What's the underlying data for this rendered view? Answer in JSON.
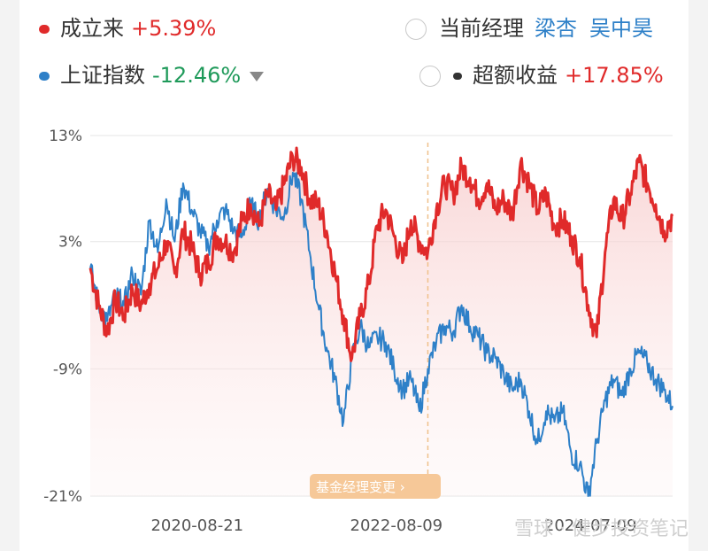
{
  "legend": {
    "fund": {
      "label": "成立来",
      "value": "+5.39%",
      "color": "#e02a2a"
    },
    "index": {
      "label": "上证指数",
      "value": "-12.46%",
      "color": "#2e80c8",
      "value_color": "#1f9a5a"
    },
    "manager": {
      "label": "当前经理",
      "names": [
        "梁杏",
        "吴中昊"
      ]
    },
    "excess": {
      "label": "超额收益",
      "value": "+17.85%"
    }
  },
  "event_badge": "基金经理变更 ›",
  "watermark": "雪球 · 健步投资笔记",
  "chart_data": {
    "type": "line",
    "x_ticks": [
      "2020-08-21",
      "2022-08-09",
      "2024-07-09"
    ],
    "y_ticks": [
      "13%",
      "3%",
      "-9%",
      "-21%"
    ],
    "ylim": [
      -21,
      13
    ],
    "manager_change_date": "2022-12",
    "series": [
      {
        "name": "成立来",
        "color": "#e02a2a",
        "points": [
          [
            "2019-08",
            0.5
          ],
          [
            "2019-09",
            -3
          ],
          [
            "2019-10",
            -5.5
          ],
          [
            "2019-11",
            -2.5
          ],
          [
            "2019-12",
            -4
          ],
          [
            "2020-01",
            -1.5
          ],
          [
            "2020-02",
            -3
          ],
          [
            "2020-03",
            -1
          ],
          [
            "2020-04",
            0.5
          ],
          [
            "2020-05",
            3
          ],
          [
            "2020-06",
            0
          ],
          [
            "2020-07",
            4
          ],
          [
            "2020-08",
            2.5
          ],
          [
            "2020-09",
            0
          ],
          [
            "2020-10",
            1
          ],
          [
            "2020-11",
            3.5
          ],
          [
            "2020-12",
            3
          ],
          [
            "2021-01",
            2
          ],
          [
            "2021-02",
            5
          ],
          [
            "2021-03",
            6.5
          ],
          [
            "2021-04",
            4.5
          ],
          [
            "2021-05",
            7.5
          ],
          [
            "2021-06",
            6
          ],
          [
            "2021-07",
            8.5
          ],
          [
            "2021-08",
            11
          ],
          [
            "2021-09",
            10
          ],
          [
            "2021-10",
            7
          ],
          [
            "2021-11",
            6.5
          ],
          [
            "2021-12",
            4
          ],
          [
            "2022-01",
            0
          ],
          [
            "2022-02",
            -4
          ],
          [
            "2022-03",
            -8
          ],
          [
            "2022-04",
            -4
          ],
          [
            "2022-05",
            -1
          ],
          [
            "2022-06",
            4.5
          ],
          [
            "2022-07",
            6
          ],
          [
            "2022-08",
            3.5
          ],
          [
            "2022-09",
            1
          ],
          [
            "2022-10",
            5
          ],
          [
            "2022-11",
            3
          ],
          [
            "2022-12",
            2
          ],
          [
            "2023-01",
            6
          ],
          [
            "2023-02",
            8.5
          ],
          [
            "2023-03",
            7.5
          ],
          [
            "2023-04",
            10
          ],
          [
            "2023-05",
            9
          ],
          [
            "2023-06",
            7
          ],
          [
            "2023-07",
            8.5
          ],
          [
            "2023-08",
            6
          ],
          [
            "2023-09",
            7
          ],
          [
            "2023-10",
            5.5
          ],
          [
            "2023-11",
            10.5
          ],
          [
            "2023-12",
            8.5
          ],
          [
            "2024-01",
            6
          ],
          [
            "2024-02",
            7.5
          ],
          [
            "2024-03",
            4.5
          ],
          [
            "2024-04",
            5
          ],
          [
            "2024-05",
            3.5
          ],
          [
            "2024-06",
            1.5
          ],
          [
            "2024-07",
            -3
          ],
          [
            "2024-08",
            -6
          ],
          [
            "2024-09",
            2
          ],
          [
            "2024-10",
            7
          ],
          [
            "2024-11",
            5
          ],
          [
            "2024-12",
            7.5
          ],
          [
            "2025-01",
            10.5
          ],
          [
            "2025-02",
            8.5
          ],
          [
            "2025-03",
            6.5
          ],
          [
            "2025-04",
            4
          ],
          [
            "2025-05",
            5.4
          ]
        ]
      },
      {
        "name": "上证指数",
        "color": "#2e80c8",
        "points": [
          [
            "2019-08",
            0.5
          ],
          [
            "2019-09",
            -3
          ],
          [
            "2019-10",
            -4.5
          ],
          [
            "2019-11",
            -2
          ],
          [
            "2019-12",
            -3
          ],
          [
            "2020-01",
            0
          ],
          [
            "2020-02",
            -2
          ],
          [
            "2020-03",
            5
          ],
          [
            "2020-04",
            2
          ],
          [
            "2020-05",
            7
          ],
          [
            "2020-06",
            3
          ],
          [
            "2020-07",
            8.5
          ],
          [
            "2020-08",
            6
          ],
          [
            "2020-09",
            4
          ],
          [
            "2020-10",
            2.5
          ],
          [
            "2020-11",
            5
          ],
          [
            "2020-12",
            6
          ],
          [
            "2021-01",
            4
          ],
          [
            "2021-02",
            3.5
          ],
          [
            "2021-03",
            6.5
          ],
          [
            "2021-04",
            5
          ],
          [
            "2021-05",
            8
          ],
          [
            "2021-06",
            6
          ],
          [
            "2021-07",
            5.5
          ],
          [
            "2021-08",
            9.5
          ],
          [
            "2021-09",
            7
          ],
          [
            "2021-10",
            2
          ],
          [
            "2021-11",
            -3
          ],
          [
            "2021-12",
            -7
          ],
          [
            "2022-01",
            -10
          ],
          [
            "2022-02",
            -14
          ],
          [
            "2022-03",
            -8
          ],
          [
            "2022-04",
            -5
          ],
          [
            "2022-05",
            -7
          ],
          [
            "2022-06",
            -6
          ],
          [
            "2022-07",
            -6.5
          ],
          [
            "2022-08",
            -9
          ],
          [
            "2022-09",
            -11
          ],
          [
            "2022-10",
            -10
          ],
          [
            "2022-11",
            -13
          ],
          [
            "2022-12",
            -9
          ],
          [
            "2023-01",
            -6.5
          ],
          [
            "2023-02",
            -5
          ],
          [
            "2023-03",
            -5.5
          ],
          [
            "2023-04",
            -3
          ],
          [
            "2023-05",
            -5
          ],
          [
            "2023-06",
            -6
          ],
          [
            "2023-07",
            -7.5
          ],
          [
            "2023-08",
            -8
          ],
          [
            "2023-09",
            -9.5
          ],
          [
            "2023-10",
            -11
          ],
          [
            "2023-11",
            -10
          ],
          [
            "2023-12",
            -13
          ],
          [
            "2024-01",
            -16
          ],
          [
            "2024-02",
            -13
          ],
          [
            "2024-03",
            -14
          ],
          [
            "2024-04",
            -13
          ],
          [
            "2024-05",
            -17
          ],
          [
            "2024-06",
            -18
          ],
          [
            "2024-07",
            -21
          ],
          [
            "2024-08",
            -16
          ],
          [
            "2024-09",
            -12
          ],
          [
            "2024-10",
            -10
          ],
          [
            "2024-11",
            -11.5
          ],
          [
            "2024-12",
            -9
          ],
          [
            "2025-01",
            -7.5
          ],
          [
            "2025-02",
            -8.5
          ],
          [
            "2025-03",
            -10
          ],
          [
            "2025-04",
            -11
          ],
          [
            "2025-05",
            -12.5
          ]
        ]
      }
    ]
  }
}
